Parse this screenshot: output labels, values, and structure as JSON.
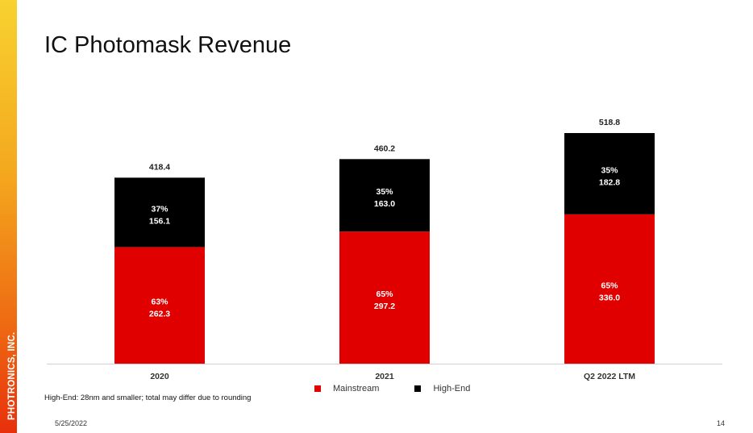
{
  "slide": {
    "brand": "PHOTRONICS, INC.",
    "title": "IC Photomask Revenue",
    "footnote": "High-End: 28nm and smaller; total may differ due to rounding",
    "date": "5/25/2022",
    "page_number": "14"
  },
  "colors": {
    "mainstream": "#e00000",
    "high_end": "#000000"
  },
  "chart_data": {
    "type": "bar",
    "stacked": true,
    "title": "IC Photomask Revenue",
    "xlabel": "",
    "ylabel": "",
    "ylim": [
      0,
      518.8
    ],
    "grid": false,
    "legend_position": "bottom",
    "categories": [
      "2020",
      "2021",
      "Q2 2022 LTM"
    ],
    "totals": [
      418.4,
      460.2,
      518.8
    ],
    "total_labels": [
      "418.4",
      "460.2",
      "518.8"
    ],
    "series": [
      {
        "name": "Mainstream",
        "values": [
          262.3,
          297.2,
          336.0
        ],
        "value_labels": [
          "262.3",
          "297.2",
          "336.0"
        ],
        "percent_labels": [
          "63%",
          "65%",
          "65%"
        ]
      },
      {
        "name": "High-End",
        "values": [
          156.1,
          163.0,
          182.8
        ],
        "value_labels": [
          "156.1",
          "163.0",
          "182.8"
        ],
        "percent_labels": [
          "37%",
          "35%",
          "35%"
        ]
      }
    ]
  }
}
